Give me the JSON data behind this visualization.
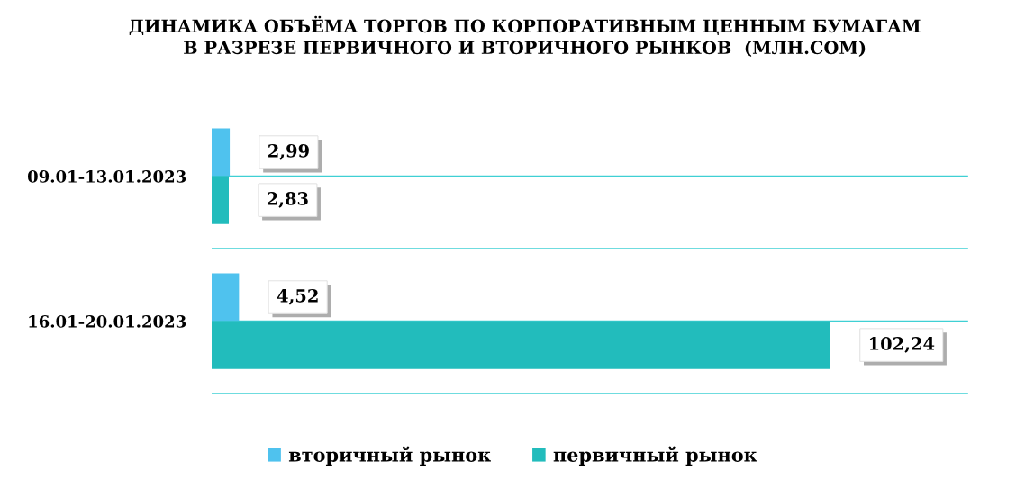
{
  "chart_data": {
    "type": "bar",
    "orientation": "horizontal",
    "title": "ДИНАМИКА ОБЪЁМА ТОРГОВ ПО КОРПОРАТИВНЫМ ЦЕННЫМ БУМАГАМ\nВ РАЗРЕЗЕ ПЕРВИЧНОГО И ВТОРИЧНОГО РЫНКОВ  (МЛН.СОМ)",
    "categories": [
      "09.01-13.01.2023",
      "16.01-20.01.2023"
    ],
    "series": [
      {
        "name": "вторичный рынок",
        "color": "#4fc2ee",
        "values": [
          2.99,
          4.52
        ],
        "value_labels": [
          "2,99",
          "4,52"
        ]
      },
      {
        "name": "первичный рынок",
        "color": "#22bcbc",
        "values": [
          2.83,
          102.24
        ],
        "value_labels": [
          "2,83",
          "102,24"
        ]
      }
    ],
    "xlim": [
      0,
      125
    ],
    "tick_labels": "y",
    "grid": "y",
    "legend": "bottom"
  }
}
